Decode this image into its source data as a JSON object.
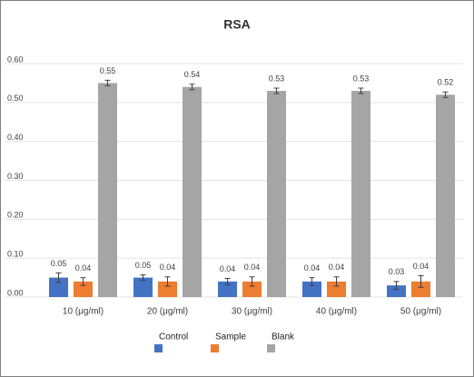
{
  "chart_data": {
    "type": "bar",
    "title": "RSA",
    "categories": [
      "10 (μg/ml)",
      "20 (μg/ml)",
      "30 (μg/ml)",
      "40 (μg/ml)",
      "50 (μg/ml)"
    ],
    "series": [
      {
        "name": "Control",
        "color": "#4472c4",
        "values": [
          0.05,
          0.05,
          0.04,
          0.04,
          0.03
        ],
        "errors": [
          0.012,
          0.007,
          0.008,
          0.01,
          0.01
        ]
      },
      {
        "name": "Sample",
        "color": "#ed7d31",
        "values": [
          0.04,
          0.04,
          0.04,
          0.04,
          0.04
        ],
        "errors": [
          0.01,
          0.012,
          0.012,
          0.012,
          0.015
        ]
      },
      {
        "name": "Blank",
        "color": "#a5a5a5",
        "values": [
          0.55,
          0.54,
          0.53,
          0.53,
          0.52
        ],
        "errors": [
          0.007,
          0.007,
          0.007,
          0.007,
          0.007
        ]
      }
    ],
    "ylim": [
      0,
      0.6
    ],
    "yticks": [
      {
        "value": 0,
        "label": "0.00"
      },
      {
        "value": 0.1,
        "label": "0.10"
      },
      {
        "value": 0.2,
        "label": "0.20"
      },
      {
        "value": 0.3,
        "label": "0.30"
      },
      {
        "value": 0.4,
        "label": "0.40"
      },
      {
        "value": 0.5,
        "label": "0.50"
      },
      {
        "value": 0.6,
        "label": "0.60"
      }
    ],
    "grid": true,
    "legend": "bottom"
  }
}
